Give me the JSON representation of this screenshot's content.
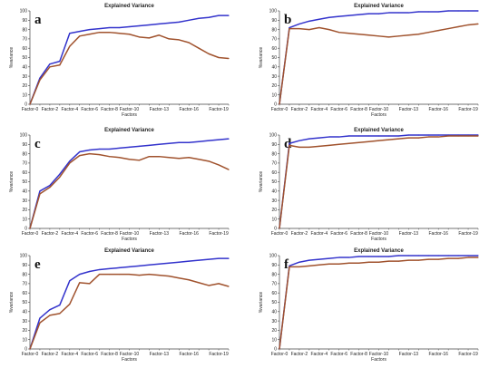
{
  "figure": {
    "colors": {
      "series1": "#3333cc",
      "series2": "#a0522d"
    }
  },
  "chart_data": [
    {
      "panel": "a",
      "type": "line",
      "title": "Explained Variance",
      "xlabel": "Factors",
      "ylabel": "%variance",
      "ylim": [
        0,
        100
      ],
      "yticks": [
        0,
        10,
        20,
        30,
        40,
        50,
        60,
        70,
        80,
        90,
        100
      ],
      "x": [
        "Factor-0",
        "Factor-1",
        "Factor-2",
        "Factor-3",
        "Factor-4",
        "Factor-5",
        "Factor-6",
        "Factor-7",
        "Factor-8",
        "Factor-9",
        "Factor-10",
        "Factor-11",
        "Factor-12",
        "Factor-13",
        "Factor-14",
        "Factor-15",
        "Factor-16",
        "Factor-17",
        "Factor-18",
        "Factor-19",
        "Factor-20"
      ],
      "xtick_labels": [
        "Factor-0",
        "Factor-2",
        "Factor-4",
        "Factor-6",
        "Factor-8",
        "Factor-10",
        "Factor-13",
        "Factor-16",
        "Factor-19"
      ],
      "xtick_index": [
        0,
        2,
        4,
        6,
        8,
        10,
        13,
        16,
        19
      ],
      "series": [
        {
          "color": "#3333cc",
          "values": [
            0,
            28,
            43,
            46,
            76,
            78,
            80,
            81,
            82,
            82,
            83,
            84,
            85,
            86,
            87,
            88,
            90,
            92,
            93,
            95,
            95
          ]
        },
        {
          "color": "#a0522d",
          "values": [
            0,
            26,
            40,
            42,
            62,
            73,
            75,
            77,
            77,
            76,
            75,
            72,
            71,
            74,
            70,
            69,
            66,
            60,
            54,
            50,
            49
          ]
        }
      ]
    },
    {
      "panel": "b",
      "type": "line",
      "title": "Explained Variance",
      "xlabel": "Factors",
      "ylabel": "%variance",
      "ylim": [
        0,
        100
      ],
      "yticks": [
        0,
        10,
        20,
        30,
        40,
        50,
        60,
        70,
        80,
        90,
        100
      ],
      "x": [
        "Factor-0",
        "Factor-1",
        "Factor-2",
        "Factor-3",
        "Factor-4",
        "Factor-5",
        "Factor-6",
        "Factor-7",
        "Factor-8",
        "Factor-9",
        "Factor-10",
        "Factor-11",
        "Factor-12",
        "Factor-13",
        "Factor-14",
        "Factor-15",
        "Factor-16",
        "Factor-17",
        "Factor-18",
        "Factor-19",
        "Factor-20"
      ],
      "xtick_labels": [
        "Factor-0",
        "Factor-2",
        "Factor-4",
        "Factor-6",
        "Factor-8",
        "Factor-10",
        "Factor-13",
        "Factor-16",
        "Factor-19"
      ],
      "xtick_index": [
        0,
        2,
        4,
        6,
        8,
        10,
        13,
        16,
        19
      ],
      "series": [
        {
          "color": "#3333cc",
          "values": [
            0,
            82,
            86,
            89,
            91,
            93,
            94,
            95,
            96,
            97,
            97,
            98,
            98,
            98,
            99,
            99,
            99,
            100,
            100,
            100,
            100
          ]
        },
        {
          "color": "#a0522d",
          "values": [
            0,
            81,
            81,
            80,
            82,
            80,
            77,
            76,
            75,
            74,
            73,
            72,
            73,
            74,
            75,
            77,
            79,
            81,
            83,
            85,
            86
          ]
        }
      ]
    },
    {
      "panel": "c",
      "type": "line",
      "title": "Explained Variance",
      "xlabel": "Factors",
      "ylabel": "%variance",
      "ylim": [
        0,
        100
      ],
      "yticks": [
        0,
        10,
        20,
        30,
        40,
        50,
        60,
        70,
        80,
        90,
        100
      ],
      "x": [
        "Factor-0",
        "Factor-1",
        "Factor-2",
        "Factor-3",
        "Factor-4",
        "Factor-5",
        "Factor-6",
        "Factor-7",
        "Factor-8",
        "Factor-9",
        "Factor-10",
        "Factor-11",
        "Factor-12",
        "Factor-13",
        "Factor-14",
        "Factor-15",
        "Factor-16",
        "Factor-17",
        "Factor-18",
        "Factor-19",
        "Factor-20"
      ],
      "xtick_labels": [
        "Factor-0",
        "Factor-2",
        "Factor-4",
        "Factor-6",
        "Factor-8",
        "Factor-10",
        "Factor-13",
        "Factor-16",
        "Factor-19"
      ],
      "xtick_index": [
        0,
        2,
        4,
        6,
        8,
        10,
        13,
        16,
        19
      ],
      "series": [
        {
          "color": "#3333cc",
          "values": [
            0,
            40,
            46,
            58,
            72,
            82,
            84,
            85,
            85,
            86,
            87,
            88,
            89,
            90,
            91,
            92,
            92,
            93,
            94,
            95,
            96
          ]
        },
        {
          "color": "#a0522d",
          "values": [
            0,
            37,
            44,
            55,
            70,
            78,
            80,
            79,
            77,
            76,
            74,
            73,
            77,
            77,
            76,
            75,
            76,
            74,
            72,
            68,
            63
          ]
        }
      ]
    },
    {
      "panel": "d",
      "type": "line",
      "title": "Explained Variance",
      "xlabel": "Factors",
      "ylabel": "%variance",
      "ylim": [
        0,
        100
      ],
      "yticks": [
        0,
        10,
        20,
        30,
        40,
        50,
        60,
        70,
        80,
        90,
        100
      ],
      "x": [
        "Factor-0",
        "Factor-1",
        "Factor-2",
        "Factor-3",
        "Factor-4",
        "Factor-5",
        "Factor-6",
        "Factor-7",
        "Factor-8",
        "Factor-9",
        "Factor-10",
        "Factor-11",
        "Factor-12",
        "Factor-13",
        "Factor-14",
        "Factor-15",
        "Factor-16",
        "Factor-17",
        "Factor-18",
        "Factor-19",
        "Factor-20"
      ],
      "xtick_labels": [
        "Factor-0",
        "Factor-2",
        "Factor-4",
        "Factor-6",
        "Factor-8",
        "Factor-10",
        "Factor-13",
        "Factor-16",
        "Factor-19"
      ],
      "xtick_index": [
        0,
        2,
        4,
        6,
        8,
        10,
        13,
        16,
        19
      ],
      "series": [
        {
          "color": "#3333cc",
          "values": [
            0,
            91,
            94,
            96,
            97,
            98,
            98,
            99,
            99,
            99,
            99,
            99,
            99,
            100,
            100,
            100,
            100,
            100,
            100,
            100,
            100
          ]
        },
        {
          "color": "#a0522d",
          "values": [
            0,
            89,
            87,
            87,
            88,
            89,
            90,
            91,
            92,
            93,
            94,
            95,
            96,
            97,
            97,
            98,
            98,
            99,
            99,
            99,
            99
          ]
        }
      ]
    },
    {
      "panel": "e",
      "type": "line",
      "title": "Explained Variance",
      "xlabel": "Factors",
      "ylabel": "%variance",
      "ylim": [
        0,
        100
      ],
      "yticks": [
        0,
        10,
        20,
        30,
        40,
        50,
        60,
        70,
        80,
        90,
        100
      ],
      "x": [
        "Factor-0",
        "Factor-1",
        "Factor-2",
        "Factor-3",
        "Factor-4",
        "Factor-5",
        "Factor-6",
        "Factor-7",
        "Factor-8",
        "Factor-9",
        "Factor-10",
        "Factor-11",
        "Factor-12",
        "Factor-13",
        "Factor-14",
        "Factor-15",
        "Factor-16",
        "Factor-17",
        "Factor-18",
        "Factor-19",
        "Factor-20"
      ],
      "xtick_labels": [
        "Factor-0",
        "Factor-2",
        "Factor-4",
        "Factor-6",
        "Factor-8",
        "Factor-10",
        "Factor-13",
        "Factor-16",
        "Factor-19"
      ],
      "xtick_index": [
        0,
        2,
        4,
        6,
        8,
        10,
        13,
        16,
        19
      ],
      "series": [
        {
          "color": "#3333cc",
          "values": [
            0,
            33,
            42,
            47,
            73,
            80,
            83,
            85,
            86,
            87,
            88,
            89,
            90,
            91,
            92,
            93,
            94,
            95,
            96,
            97,
            97
          ]
        },
        {
          "color": "#a0522d",
          "values": [
            0,
            28,
            36,
            38,
            48,
            71,
            70,
            80,
            80,
            80,
            80,
            79,
            80,
            79,
            78,
            76,
            74,
            71,
            68,
            70,
            67
          ]
        }
      ]
    },
    {
      "panel": "f",
      "type": "line",
      "title": "Explained Variance",
      "xlabel": "Factors",
      "ylabel": "%variance",
      "ylim": [
        0,
        100
      ],
      "yticks": [
        0,
        10,
        20,
        30,
        40,
        50,
        60,
        70,
        80,
        90,
        100
      ],
      "x": [
        "Factor-0",
        "Factor-1",
        "Factor-2",
        "Factor-3",
        "Factor-4",
        "Factor-5",
        "Factor-6",
        "Factor-7",
        "Factor-8",
        "Factor-9",
        "Factor-10",
        "Factor-11",
        "Factor-12",
        "Factor-13",
        "Factor-14",
        "Factor-15",
        "Factor-16",
        "Factor-17",
        "Factor-18",
        "Factor-19",
        "Factor-20"
      ],
      "xtick_labels": [
        "Factor-0",
        "Factor-2",
        "Factor-4",
        "Factor-6",
        "Factor-8",
        "Factor-10",
        "Factor-13",
        "Factor-16",
        "Factor-19"
      ],
      "xtick_index": [
        0,
        2,
        4,
        6,
        8,
        10,
        13,
        16,
        19
      ],
      "series": [
        {
          "color": "#3333cc",
          "values": [
            0,
            89,
            93,
            95,
            96,
            97,
            98,
            98,
            99,
            99,
            99,
            99,
            100,
            100,
            100,
            100,
            100,
            100,
            100,
            100,
            100
          ]
        },
        {
          "color": "#a0522d",
          "values": [
            0,
            88,
            88,
            89,
            90,
            91,
            91,
            92,
            92,
            93,
            93,
            94,
            94,
            95,
            95,
            96,
            96,
            97,
            97,
            98,
            98
          ]
        }
      ]
    }
  ]
}
